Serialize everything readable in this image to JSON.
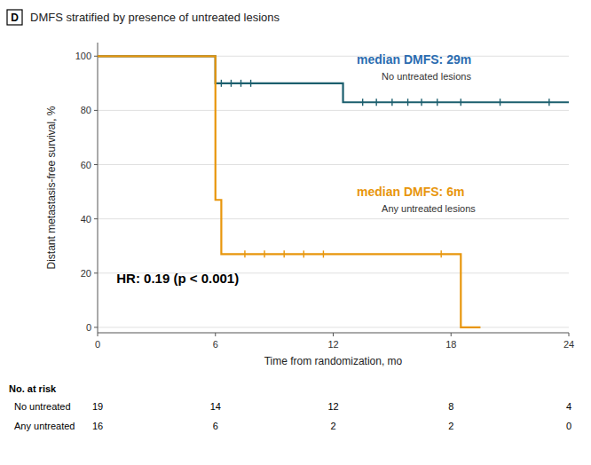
{
  "chart_data": {
    "type": "step",
    "title": "DMFS stratified by presence of untreated lesions",
    "panel_label": "D",
    "x_label": "Time from randomization, mo",
    "y_label": "Distant metastasis-free survival, %",
    "xlim": [
      0,
      24
    ],
    "ylim": [
      -2,
      105
    ],
    "xticks": [
      0,
      6,
      12,
      18,
      24
    ],
    "yticks": [
      0,
      20,
      40,
      60,
      80,
      100
    ],
    "grid": true,
    "series": [
      {
        "name": "No untreated lesions",
        "color": "#1c5f6e",
        "x": [
          0,
          6,
          6,
          12.5,
          12.5,
          24
        ],
        "values": [
          100,
          100,
          90,
          90,
          83,
          83
        ],
        "censor_x": [
          6.3,
          6.8,
          7.3,
          7.8,
          13.5,
          14.2,
          15.0,
          15.8,
          16.5,
          17.3,
          18.5,
          20.5,
          23.0
        ],
        "censor_values": [
          90,
          90,
          90,
          90,
          83,
          83,
          83,
          83,
          83,
          83,
          83,
          83,
          83
        ]
      },
      {
        "name": "Any untreated lesions",
        "color": "#e8960c",
        "x": [
          0,
          6,
          6,
          6.3,
          6.3,
          18.5,
          18.5,
          19.5
        ],
        "values": [
          100,
          100,
          47,
          47,
          27,
          27,
          0,
          0
        ],
        "censor_x": [
          7.5,
          8.5,
          9.5,
          10.5,
          11.5,
          17.5
        ],
        "censor_values": [
          27,
          27,
          27,
          27,
          27,
          27
        ]
      }
    ],
    "annotations": [
      {
        "text": "median DMFS: 29m",
        "color": "#2b6cb0"
      },
      {
        "text": "median DMFS: 6m",
        "color": "#e8960c"
      },
      {
        "text": "HR: 0.19 (p < 0.001)"
      }
    ],
    "at_risk": {
      "label": "No. at risk",
      "times": [
        0,
        6,
        12,
        18,
        24
      ],
      "rows": [
        {
          "name": "No untreated",
          "values": [
            19,
            14,
            12,
            8,
            4
          ]
        },
        {
          "name": "Any untreated",
          "values": [
            16,
            6,
            2,
            2,
            0
          ]
        }
      ]
    }
  }
}
